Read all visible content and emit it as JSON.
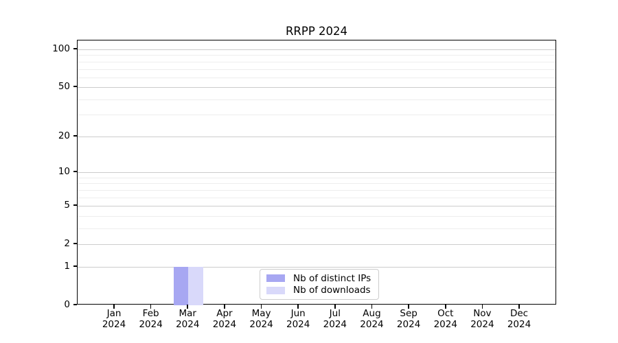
{
  "chart_data": {
    "type": "bar",
    "title": "RRPP 2024",
    "categories": [
      "Jan 2024",
      "Feb 2024",
      "Mar 2024",
      "Apr 2024",
      "May 2024",
      "Jun 2024",
      "Jul 2024",
      "Aug 2024",
      "Sep 2024",
      "Oct 2024",
      "Nov 2024",
      "Dec 2024"
    ],
    "months": [
      "Jan",
      "Feb",
      "Mar",
      "Apr",
      "May",
      "Jun",
      "Jul",
      "Aug",
      "Sep",
      "Oct",
      "Nov",
      "Dec"
    ],
    "year": "2024",
    "series": [
      {
        "name": "Nb of distinct IPs",
        "color": "#a7a7f2",
        "values": [
          0,
          0,
          1,
          0,
          0,
          0,
          0,
          0,
          0,
          0,
          0,
          0
        ]
      },
      {
        "name": "Nb of downloads",
        "color": "#d9d9fa",
        "values": [
          0,
          0,
          1,
          0,
          0,
          0,
          0,
          0,
          0,
          0,
          0,
          0
        ]
      }
    ],
    "xlabel": "",
    "ylabel": "",
    "yscale": "log10(value+1)",
    "ylim": [
      0,
      117.7
    ],
    "yticks": [
      0,
      1,
      2,
      5,
      10,
      20,
      50,
      100
    ],
    "minor_yticks": [
      3,
      4,
      6,
      7,
      8,
      9,
      30,
      40,
      60,
      70,
      80,
      90
    ],
    "grid": "on",
    "legend_position": "lower center"
  },
  "colors": {
    "axis": "#000000",
    "major_grid": "#cccccc",
    "minor_grid": "#ededed",
    "background": "#ffffff",
    "legend_border": "#cccccc"
  }
}
